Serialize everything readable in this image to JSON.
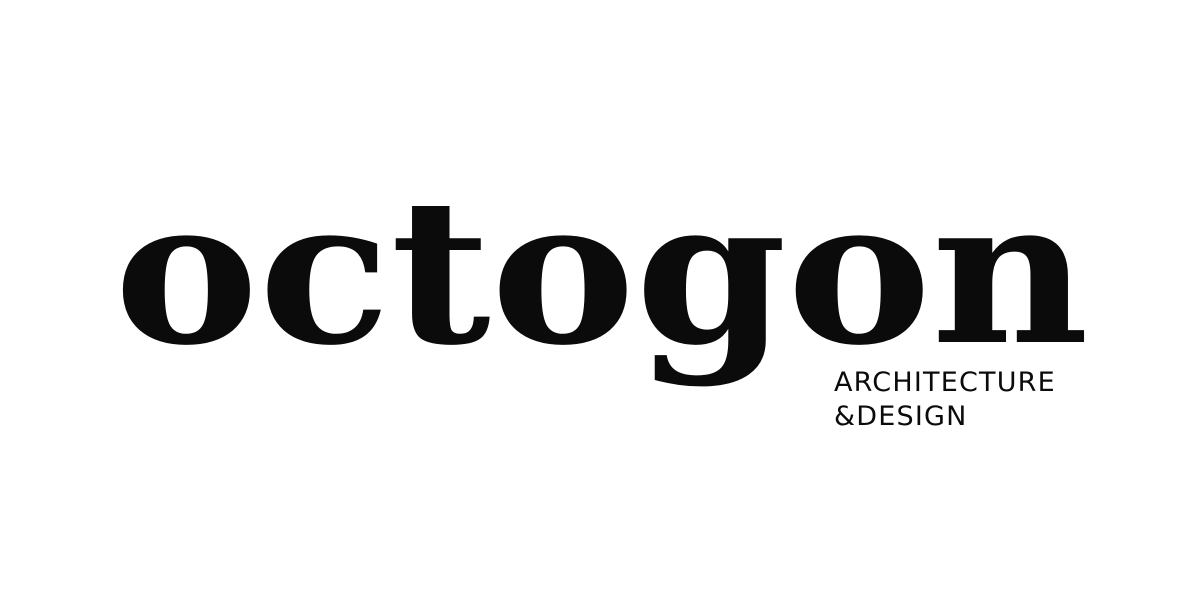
{
  "logo": {
    "wordmark": "octogon",
    "tagline_line1": "ARCHITECTURE",
    "tagline_line2": "&DESIGN"
  },
  "colors": {
    "background": "#ffffff",
    "ink": "#0b0b0b"
  }
}
